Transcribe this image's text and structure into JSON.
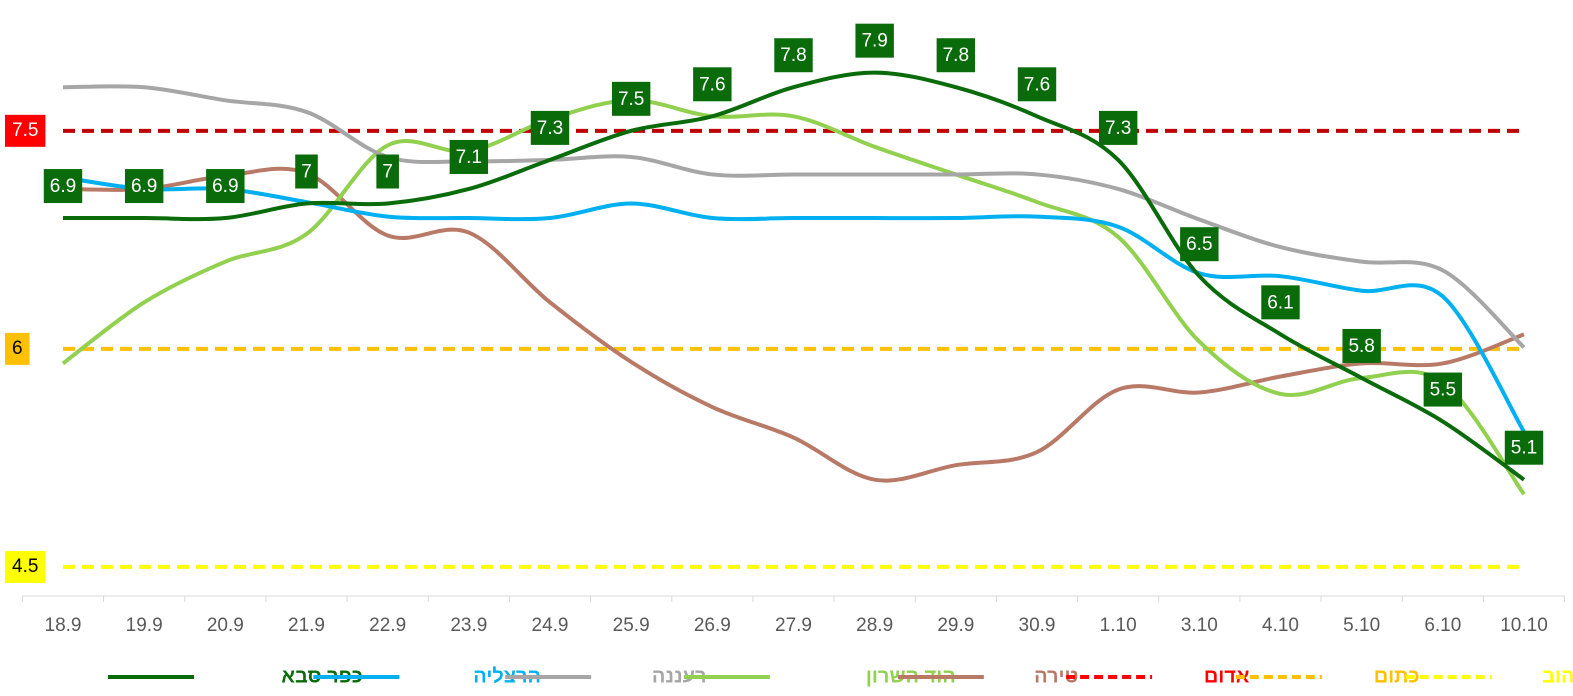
{
  "chart_data": {
    "type": "line",
    "categories": [
      "18.9",
      "19.9",
      "20.9",
      "21.9",
      "22.9",
      "23.9",
      "24.9",
      "25.9",
      "26.9",
      "27.9",
      "28.9",
      "29.9",
      "30.9",
      "1.10",
      "3.10",
      "4.10",
      "5.10",
      "6.10",
      "10.10"
    ],
    "ylim": [
      4.3,
      8.4
    ],
    "series": [
      {
        "name": "כפר סבא",
        "color": "#0a6b0a",
        "labeled": true,
        "values": [
          6.9,
          6.9,
          6.9,
          7,
          7,
          7.1,
          7.3,
          7.5,
          7.6,
          7.8,
          7.9,
          7.8,
          7.6,
          7.3,
          6.5,
          6.1,
          5.8,
          5.5,
          5.1
        ]
      },
      {
        "name": "הרצליה",
        "color": "#00b0f0",
        "values": [
          7.18,
          7.1,
          7.1,
          7.01,
          6.91,
          6.9,
          6.9,
          7.0,
          6.9,
          6.9,
          6.9,
          6.9,
          6.91,
          6.84,
          6.52,
          6.5,
          6.4,
          6.36,
          5.43
        ]
      },
      {
        "name": "רעננה",
        "color": "#a6a6a6",
        "values": [
          7.8,
          7.8,
          7.71,
          7.63,
          7.32,
          7.29,
          7.3,
          7.32,
          7.2,
          7.2,
          7.2,
          7.2,
          7.2,
          7.1,
          6.89,
          6.7,
          6.6,
          6.54,
          6.01
        ]
      },
      {
        "name": "הוד השרון",
        "color": "#92d050",
        "values": [
          5.9,
          6.32,
          6.6,
          6.79,
          7.4,
          7.36,
          7.58,
          7.71,
          7.6,
          7.6,
          7.39,
          7.2,
          7.01,
          6.77,
          6.05,
          5.69,
          5.8,
          5.77,
          5.0
        ]
      },
      {
        "name": "טירה",
        "color": "#b87a66",
        "values": [
          7.1,
          7.1,
          7.19,
          7.21,
          6.78,
          6.8,
          6.32,
          5.91,
          5.6,
          5.39,
          5.1,
          5.2,
          5.29,
          5.72,
          5.7,
          5.81,
          5.9,
          5.9,
          6.1
        ]
      }
    ],
    "thresholds": [
      {
        "name": "אדום",
        "color": "#c00000",
        "value": 7.5,
        "label_color": "#ff0000",
        "text_color": "#ffffff"
      },
      {
        "name": "כתום",
        "color": "#ffc000",
        "value": 6,
        "label_color": "#ffc000",
        "text_color": "#000000"
      },
      {
        "name": "צהוב",
        "color": "#ffff00",
        "value": 4.5,
        "label_color": "#ffff00",
        "text_color": "#000000"
      }
    ]
  }
}
